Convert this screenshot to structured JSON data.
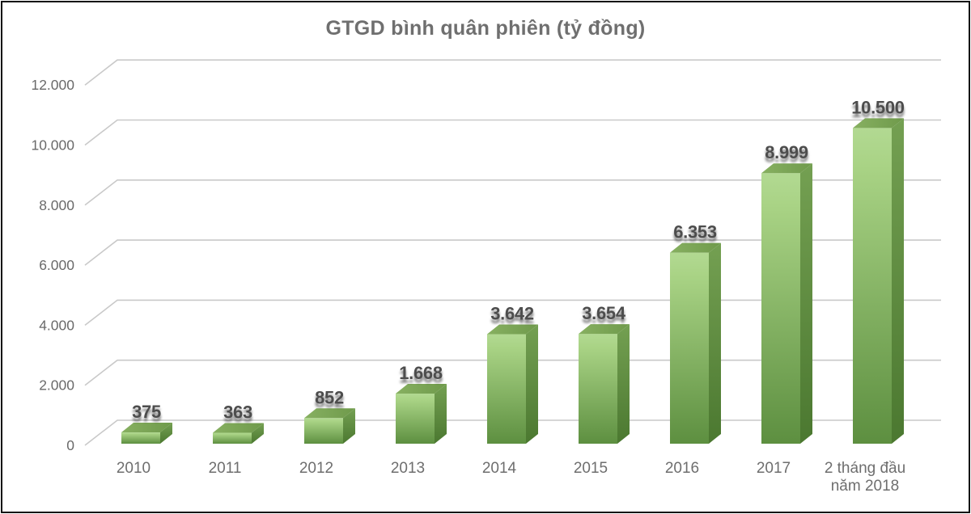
{
  "chart_data": {
    "type": "bar",
    "title": "GTGD bình quân phiên (tỷ đồng)",
    "categories": [
      "2010",
      "2011",
      "2012",
      "2013",
      "2014",
      "2015",
      "2016",
      "2017",
      "2 tháng đầu\nnăm 2018"
    ],
    "values": [
      375,
      363,
      852,
      1668,
      3642,
      3654,
      6353,
      8999,
      10500
    ],
    "value_labels": [
      "375",
      "363",
      "852",
      "1.668",
      "3.642",
      "3.654",
      "6.353",
      "8.999",
      "10.500"
    ],
    "y_axis": {
      "ticks": [
        0,
        2000,
        4000,
        6000,
        8000,
        10000,
        12000
      ],
      "tick_labels": [
        "0",
        "2.000",
        "4.000",
        "6.000",
        "8.000",
        "10.000",
        "12.000"
      ],
      "range": [
        0,
        12000
      ]
    },
    "grid": true,
    "legend": "none",
    "bar_style": "3d-column",
    "style": {
      "bar_front_top": "#b2d992",
      "bar_front_mid": "#a9d385",
      "bar_front_bottom": "#5d8f40",
      "bar_side_top": "#74a052",
      "bar_side_bottom": "#4b7830",
      "bar_top_left": "#87b061",
      "bar_top_right": "#6f9a4b",
      "grid_color": "#c9c9c9",
      "title_color": "#6f6f6f",
      "value_label_color": "#4d4d4d",
      "axis_label_color": "#6a6a6a",
      "category_label_color": "#6e6e6e",
      "frame_border_color": "#131313",
      "background": "#ffffff"
    }
  }
}
